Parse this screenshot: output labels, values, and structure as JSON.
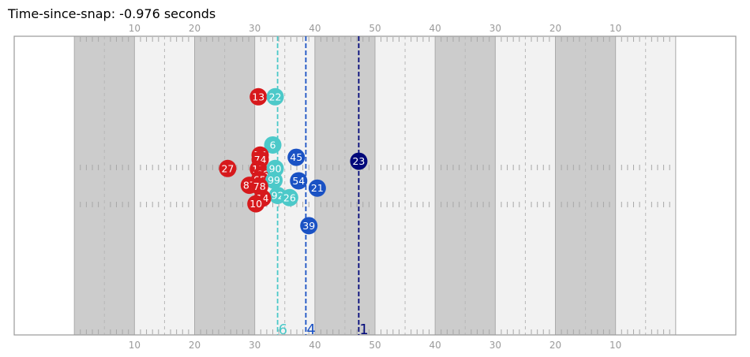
{
  "title": "Time-since-snap: -0.976 seconds",
  "colors": {
    "stripe_dark": "#cccccc",
    "stripe_light": "#f2f2f2",
    "field_border": "#999999",
    "hash": "#a8a8a8",
    "offense": "#d7191c",
    "defense": "#1a52c4",
    "ball_carrier": "#00087a",
    "cyan": "#4cc9c9"
  },
  "chart_data": {
    "type": "scatter",
    "x_range": [
      -10,
      110
    ],
    "y_range": [
      0,
      53.3
    ],
    "top_tick_labels": [
      "10",
      "20",
      "30",
      "40",
      "50",
      "40",
      "30",
      "20",
      "10"
    ],
    "bottom_tick_labels": [
      "10",
      "20",
      "30",
      "40",
      "50",
      "40",
      "30",
      "20",
      "10"
    ],
    "tick_positions": [
      10,
      20,
      30,
      40,
      50,
      60,
      70,
      80,
      90
    ],
    "lines": [
      {
        "label": "6",
        "x": 33.8,
        "color": "#4cc9c9"
      },
      {
        "label": "4",
        "x": 38.5,
        "color": "#1a52c4"
      },
      {
        "label": "1",
        "x": 47.3,
        "color": "#00087a"
      }
    ],
    "players": [
      {
        "number": "13",
        "x": 30.6,
        "y": 42.5,
        "team": "offense"
      },
      {
        "number": "22",
        "x": 33.4,
        "y": 42.5,
        "team": "cyan"
      },
      {
        "number": "6",
        "x": 33.0,
        "y": 33.9,
        "team": "cyan"
      },
      {
        "number": "45",
        "x": 36.9,
        "y": 31.7,
        "team": "defense"
      },
      {
        "number": "23",
        "x": 47.3,
        "y": 31.0,
        "team": "ball_carrier"
      },
      {
        "number": "76",
        "x": 30.9,
        "y": 32.1,
        "team": "offense"
      },
      {
        "number": "74",
        "x": 30.9,
        "y": 31.3,
        "team": "offense"
      },
      {
        "number": "27",
        "x": 25.5,
        "y": 29.7,
        "team": "offense"
      },
      {
        "number": "12",
        "x": 30.6,
        "y": 29.6,
        "team": "offense"
      },
      {
        "number": "66",
        "x": 31.3,
        "y": 28.7,
        "team": "offense"
      },
      {
        "number": "90",
        "x": 33.4,
        "y": 29.7,
        "team": "cyan"
      },
      {
        "number": "65",
        "x": 30.8,
        "y": 27.7,
        "team": "offense"
      },
      {
        "number": "99",
        "x": 33.2,
        "y": 27.6,
        "team": "cyan"
      },
      {
        "number": "54",
        "x": 37.3,
        "y": 27.5,
        "team": "defense"
      },
      {
        "number": "87",
        "x": 29.1,
        "y": 26.7,
        "team": "offense"
      },
      {
        "number": "78",
        "x": 30.8,
        "y": 26.5,
        "team": "offense"
      },
      {
        "number": "21",
        "x": 40.4,
        "y": 26.2,
        "team": "defense"
      },
      {
        "number": "92",
        "x": 33.8,
        "y": 24.9,
        "team": "cyan"
      },
      {
        "number": "14",
        "x": 31.3,
        "y": 24.4,
        "team": "offense"
      },
      {
        "number": "26",
        "x": 35.8,
        "y": 24.5,
        "team": "cyan"
      },
      {
        "number": "10",
        "x": 30.2,
        "y": 23.4,
        "team": "offense"
      },
      {
        "number": "39",
        "x": 39.0,
        "y": 19.5,
        "team": "defense"
      }
    ]
  }
}
